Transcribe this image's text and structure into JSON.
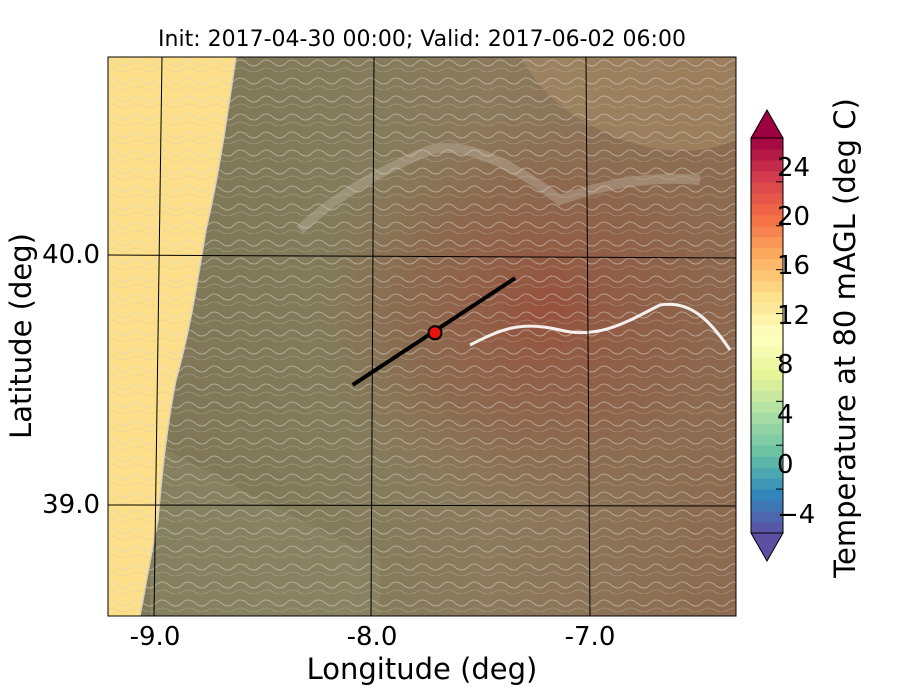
{
  "title": "Init: 2017-04-30 00:00; Valid: 2017-06-02 06:00",
  "map": {
    "x_axis": {
      "label": "Longitude (deg)",
      "range": [
        -9.25,
        -6.35
      ],
      "ticks": [
        {
          "value": -9.0,
          "label": "-9.0"
        },
        {
          "value": -8.0,
          "label": "-8.0"
        },
        {
          "value": -7.0,
          "label": "-7.0"
        }
      ]
    },
    "y_axis": {
      "label": "Latitude (deg)",
      "range": [
        38.55,
        40.8
      ],
      "ticks": [
        {
          "value": 39.0,
          "label": "39.0"
        },
        {
          "value": 40.0,
          "label": "40.0"
        }
      ]
    },
    "cross_section_line": {
      "start": {
        "lon": -8.12,
        "lat": 39.48
      },
      "end": {
        "lon": -7.37,
        "lat": 39.91
      }
    },
    "marker": {
      "lon": -7.74,
      "lat": 39.69,
      "color": "#e8120f"
    }
  },
  "colorbar": {
    "label": "Temperature at 80 mAGL (deg C)",
    "range": [
      -8,
      28
    ],
    "extend": "both",
    "ticks": [
      {
        "value": -4,
        "label": "−4"
      },
      {
        "value": 0,
        "label": "0"
      },
      {
        "value": 4,
        "label": "4"
      },
      {
        "value": 8,
        "label": "8"
      },
      {
        "value": 12,
        "label": "12"
      },
      {
        "value": 16,
        "label": "16"
      },
      {
        "value": 20,
        "label": "20"
      },
      {
        "value": 24,
        "label": "24"
      }
    ],
    "colors": [
      "#5e4fa2",
      "#3288bd",
      "#66c2a5",
      "#abdda4",
      "#e6f598",
      "#ffffbf",
      "#fee08b",
      "#fdae61",
      "#f46d43",
      "#d53e4f",
      "#9e0142"
    ]
  }
}
